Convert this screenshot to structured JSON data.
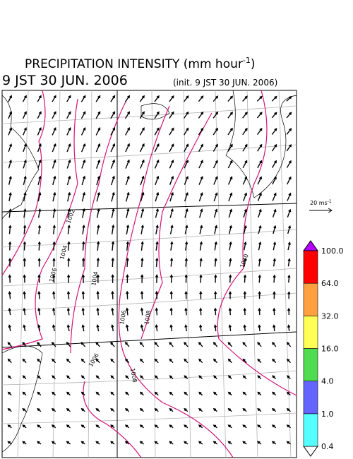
{
  "header": {
    "title": "PRECIPITATION INTENSITY (mm hour",
    "title_superscript": "-1",
    "title_end": ")",
    "valid_time": "9 JST 30 JUN. 2006",
    "init_time": "(init. 9 JST 30 JUN. 2006)"
  },
  "wind_legend": {
    "label": "20 ms",
    "superscript": "-1"
  },
  "contour_labels": [
    "1002",
    "1004",
    "1006",
    "1004",
    "1006",
    "1008",
    "1008",
    "1006",
    "1010"
  ],
  "colorbar": {
    "labels": [
      "0.4",
      "1.0",
      "4.0",
      "16.0",
      "32.0",
      "64.0",
      "100.0"
    ],
    "colors": [
      "#ffffff",
      "#55ffff",
      "#6464ff",
      "#50dc50",
      "#ffff55",
      "#ffa040",
      "#ff0000",
      "#b400ff"
    ]
  }
}
